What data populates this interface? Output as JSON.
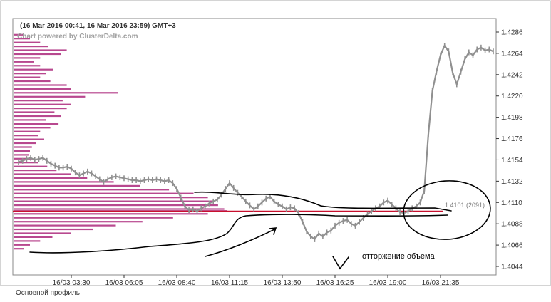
{
  "header": {
    "range": "(16 Mar 2016 00:41, 16 Mar 2016 23:59) GMT+3",
    "powered_by": "Chart powered by ClusterDelta.com"
  },
  "chart_data": {
    "type": "line",
    "title": "",
    "y_ticks": [
      "1.4286",
      "1.4264",
      "1.4242",
      "1.4220",
      "1.4198",
      "1.4176",
      "1.4154",
      "1.4132",
      "1.4110",
      "1.4088",
      "1.4066",
      "1.4044"
    ],
    "y_tick_values": [
      1.4286,
      1.4264,
      1.4242,
      1.422,
      1.4198,
      1.4176,
      1.4154,
      1.4132,
      1.411,
      1.4088,
      1.4066,
      1.4044
    ],
    "ylim": [
      1.404,
      1.429
    ],
    "x_ticks": [
      "16/03 03:30",
      "16/03 06:05",
      "16/03 08:40",
      "16/03 11:15",
      "16/03 13:50",
      "16/03 16:25",
      "16/03 19:00",
      "16/03 21:35"
    ],
    "poc_label": "1.4101 (2091)",
    "poc_value": 1.4101,
    "price_series": {
      "name": "",
      "values": [
        1.4152,
        1.4153,
        1.4155,
        1.4156,
        1.4154,
        1.4155,
        1.4156,
        1.4153,
        1.415,
        1.4148,
        1.4146,
        1.4146,
        1.4147,
        1.4145,
        1.4141,
        1.4138,
        1.414,
        1.4142,
        1.414,
        1.4137,
        1.4134,
        1.4131,
        1.4134,
        1.4136,
        1.4137,
        1.4136,
        1.4135,
        1.4134,
        1.4133,
        1.4133,
        1.4132,
        1.4133,
        1.4134,
        1.4133,
        1.4134,
        1.4133,
        1.4132,
        1.4133,
        1.413,
        1.4124,
        1.4115,
        1.4106,
        1.4102,
        1.4103,
        1.4101,
        1.4104,
        1.4106,
        1.4109,
        1.4111,
        1.4113,
        1.4118,
        1.4124,
        1.413,
        1.4125,
        1.412,
        1.4116,
        1.4111,
        1.4107,
        1.4103,
        1.4106,
        1.411,
        1.4114,
        1.4116,
        1.4111,
        1.4108,
        1.4106,
        1.4103,
        1.4105,
        1.4104,
        1.4099,
        1.409,
        1.408,
        1.4075,
        1.4072,
        1.4078,
        1.4075,
        1.4079,
        1.4081,
        1.4086,
        1.4089,
        1.4091,
        1.4092,
        1.4088,
        1.4086,
        1.409,
        1.4094,
        1.4098,
        1.4101,
        1.4104,
        1.4106,
        1.411,
        1.4112,
        1.4108,
        1.4104,
        1.41,
        1.4099,
        1.4101,
        1.4104,
        1.4106,
        1.411,
        1.4122,
        1.418,
        1.4225,
        1.4245,
        1.4262,
        1.4272,
        1.4266,
        1.4244,
        1.4232,
        1.4245,
        1.4258,
        1.4265,
        1.4262,
        1.4268,
        1.427,
        1.4267,
        1.4268,
        1.4266
      ]
    },
    "volume_profile": {
      "name": "Основной профиль",
      "max_volume": 2091,
      "levels": [
        {
          "price": 1.4283,
          "volume": 100
        },
        {
          "price": 1.4279,
          "volume": 160
        },
        {
          "price": 1.4275,
          "volume": 260
        },
        {
          "price": 1.4271,
          "volume": 340
        },
        {
          "price": 1.4267,
          "volume": 520
        },
        {
          "price": 1.4263,
          "volume": 460
        },
        {
          "price": 1.4259,
          "volume": 260
        },
        {
          "price": 1.4255,
          "volume": 200
        },
        {
          "price": 1.4251,
          "volume": 260
        },
        {
          "price": 1.4247,
          "volume": 390
        },
        {
          "price": 1.4243,
          "volume": 320
        },
        {
          "price": 1.4239,
          "volume": 260
        },
        {
          "price": 1.4235,
          "volume": 360
        },
        {
          "price": 1.4231,
          "volume": 520
        },
        {
          "price": 1.4227,
          "volume": 560
        },
        {
          "price": 1.4223,
          "volume": 1020
        },
        {
          "price": 1.4219,
          "volume": 700
        },
        {
          "price": 1.4215,
          "volume": 480
        },
        {
          "price": 1.4211,
          "volume": 560
        },
        {
          "price": 1.4207,
          "volume": 520
        },
        {
          "price": 1.4203,
          "volume": 400
        },
        {
          "price": 1.4199,
          "volume": 460
        },
        {
          "price": 1.4195,
          "volume": 320
        },
        {
          "price": 1.4191,
          "volume": 440
        },
        {
          "price": 1.4187,
          "volume": 360
        },
        {
          "price": 1.4183,
          "volume": 260
        },
        {
          "price": 1.4179,
          "volume": 240
        },
        {
          "price": 1.4175,
          "volume": 300
        },
        {
          "price": 1.4171,
          "volume": 220
        },
        {
          "price": 1.4167,
          "volume": 180
        },
        {
          "price": 1.4163,
          "volume": 160
        },
        {
          "price": 1.4159,
          "volume": 150
        },
        {
          "price": 1.4155,
          "volume": 180
        },
        {
          "price": 1.4151,
          "volume": 240
        },
        {
          "price": 1.4147,
          "volume": 330
        },
        {
          "price": 1.4143,
          "volume": 420
        },
        {
          "price": 1.4139,
          "volume": 560
        },
        {
          "price": 1.4135,
          "volume": 720
        },
        {
          "price": 1.4131,
          "volume": 980
        },
        {
          "price": 1.4127,
          "volume": 1240
        },
        {
          "price": 1.4123,
          "volume": 1520
        },
        {
          "price": 1.4119,
          "volume": 1760
        },
        {
          "price": 1.4115,
          "volume": 1900
        },
        {
          "price": 1.4111,
          "volume": 1960
        },
        {
          "price": 1.4107,
          "volume": 2000
        },
        {
          "price": 1.4103,
          "volume": 2060
        },
        {
          "price": 1.4101,
          "volume": 2091
        },
        {
          "price": 1.4098,
          "volume": 1900
        },
        {
          "price": 1.4094,
          "volume": 1560
        },
        {
          "price": 1.409,
          "volume": 1260
        },
        {
          "price": 1.4086,
          "volume": 1000
        },
        {
          "price": 1.4082,
          "volume": 780
        },
        {
          "price": 1.4078,
          "volume": 560
        },
        {
          "price": 1.4074,
          "volume": 380
        },
        {
          "price": 1.407,
          "volume": 260
        },
        {
          "price": 1.4066,
          "volume": 160
        },
        {
          "price": 1.4062,
          "volume": 100
        }
      ]
    },
    "annotation": "отторжение объема"
  },
  "colors": {
    "profile": "#b8488f",
    "poc": "#c8102e",
    "price": "#909090",
    "axis": "#333333",
    "grid": "#cfcfcf"
  },
  "bottom_tab": {
    "label": "Основной профиль"
  }
}
